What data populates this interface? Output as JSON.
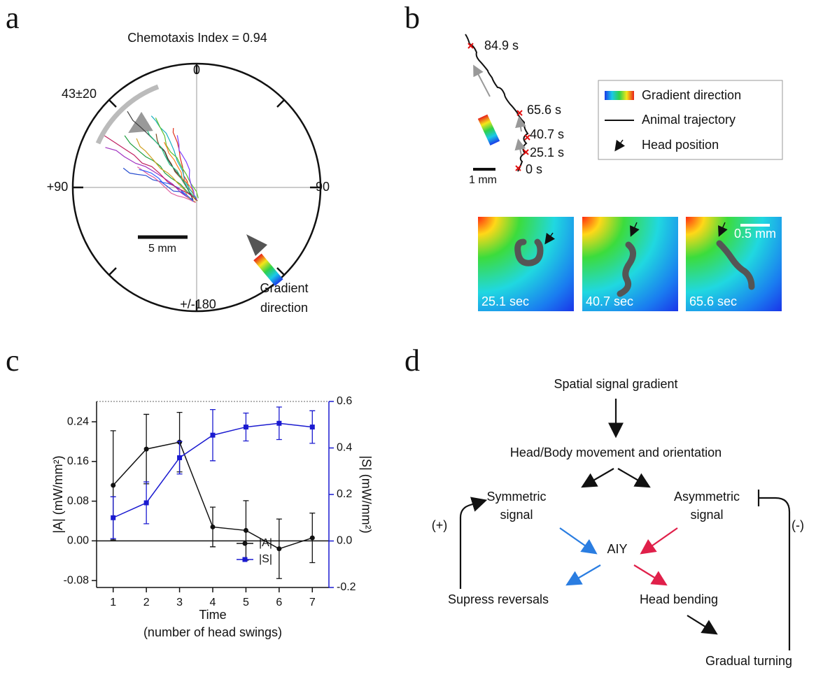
{
  "panel_a": {
    "letter": "a",
    "title": "Chemotaxis Index = 0.94",
    "angle_top": "0",
    "angle_left": "+90",
    "angle_right": "-90",
    "angle_bottom": "+/-180",
    "mean_angle": "43±20",
    "scale": "5 mm",
    "gradient_label": [
      "Gradient",
      "direction"
    ]
  },
  "panel_b": {
    "letter": "b",
    "times": [
      "84.9 s",
      "65.6 s",
      "40.7 s",
      "25.1 s",
      "0 s"
    ],
    "scale": "1 mm",
    "legend": [
      "Gradient direction",
      "Animal trajectory",
      "Head position"
    ],
    "frames": [
      "25.1 sec",
      "40.7 sec",
      "65.6 sec"
    ],
    "frame_scale": "0.5 mm"
  },
  "panel_c_letter": "c",
  "chart_data": {
    "type": "line",
    "xlabel": [
      "Time",
      "(number of head swings)"
    ],
    "ylabel": "|A| (mW/mm²)",
    "y2label": "|S| (mW/mm²)",
    "x": [
      1,
      2,
      3,
      4,
      5,
      6,
      7
    ],
    "xlim": [
      0.5,
      7.5
    ],
    "xticks": [
      1,
      2,
      3,
      4,
      5,
      6,
      7
    ],
    "ylim": [
      -0.094,
      0.281
    ],
    "yticks": [
      -0.08,
      {
        "value": 0,
        "label": "0.00"
      },
      0.08,
      0.16,
      0.24
    ],
    "y2lim": [
      -0.2,
      0.6
    ],
    "y2ticks": [
      -0.2,
      {
        "value": 0,
        "label": "0.0"
      },
      0.2,
      0.4,
      0.6
    ],
    "series": [
      {
        "name": "|A|",
        "color": "#111111",
        "values": [
          0.112,
          0.185,
          0.199,
          0.028,
          0.021,
          -0.016,
          0.006
        ],
        "errors": [
          0.11,
          0.07,
          0.06,
          0.04,
          0.06,
          0.06,
          0.05
        ]
      },
      {
        "name": "|S|",
        "color": "#1a1ad0",
        "axis": "y2",
        "values": [
          0.1,
          0.164,
          0.358,
          0.455,
          0.49,
          0.506,
          0.49
        ],
        "errors": [
          0.09,
          0.09,
          0.07,
          0.11,
          0.06,
          0.07,
          0.07
        ]
      }
    ]
  },
  "panel_d": {
    "letter": "d",
    "nodes": {
      "gradient": "Spatial signal gradient",
      "movement": "Head/Body movement and orientation",
      "symmetric": [
        "Symmetric",
        "signal"
      ],
      "asymmetric": [
        "Asymmetric",
        "signal"
      ],
      "aiy": "AIY",
      "reversals": "Supress reversals",
      "bending": "Head bending",
      "turning": "Gradual turning",
      "plus": "(+)",
      "minus": "(-)"
    }
  }
}
